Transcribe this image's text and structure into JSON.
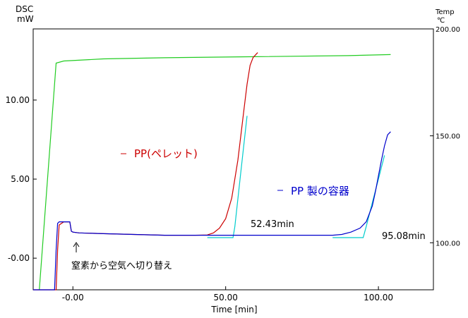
{
  "chart_data": {
    "type": "line",
    "xlabel": "Time [min]",
    "ylabel": "DSC",
    "ylabel_unit": "mW",
    "y2label": "Temp",
    "y2label_unit": "℃",
    "xlim": [
      -13,
      118
    ],
    "ylim": [
      -2,
      14.5
    ],
    "y2lim": [
      78,
      200
    ],
    "x_ticks": [
      {
        "value": 0,
        "label": "-0.00"
      },
      {
        "value": 50,
        "label": "50.00"
      },
      {
        "value": 100,
        "label": "100.00"
      }
    ],
    "y_ticks": [
      {
        "value": 10,
        "label": "10.00"
      },
      {
        "value": 5,
        "label": "5.00"
      },
      {
        "value": 0,
        "label": "-0.00"
      }
    ],
    "y2_ticks": [
      {
        "value": 200,
        "label": "200.00"
      },
      {
        "value": 150,
        "label": "150.00"
      },
      {
        "value": 100,
        "label": "100.00"
      }
    ],
    "series": [
      {
        "name": "PP(ペレット)",
        "color": "#cc0000",
        "axis": "left",
        "x": [
          -13,
          -11,
          -10.5,
          -5.5,
          -5,
          -4.5,
          -3,
          -1,
          -0.5,
          0,
          2,
          10,
          20,
          30,
          40,
          44,
          46,
          48,
          50,
          52,
          54,
          56,
          57,
          58,
          59,
          60.5
        ],
        "y": [
          -2,
          -2,
          -2,
          -2,
          0.5,
          2.1,
          2.3,
          2.3,
          1.7,
          1.65,
          1.6,
          1.55,
          1.5,
          1.45,
          1.45,
          1.47,
          1.6,
          1.9,
          2.5,
          3.8,
          6.2,
          9.4,
          11.0,
          12.2,
          12.7,
          13.0
        ]
      },
      {
        "name": "PP 製の容器",
        "color": "#0000cc",
        "axis": "left",
        "x": [
          -13,
          -6,
          -5.5,
          -5,
          -4.5,
          -3,
          -1,
          -0.5,
          0,
          2,
          10,
          30,
          50,
          70,
          85,
          88,
          91,
          94,
          96,
          98,
          99,
          100,
          101,
          102,
          103,
          104
        ],
        "y": [
          -2,
          -2,
          0.5,
          2.2,
          2.3,
          2.3,
          2.3,
          1.7,
          1.65,
          1.6,
          1.55,
          1.45,
          1.45,
          1.45,
          1.45,
          1.5,
          1.65,
          1.9,
          2.3,
          3.3,
          4.2,
          5.2,
          6.2,
          7.1,
          7.8,
          8.0
        ]
      },
      {
        "name": "Temp (ペレット)",
        "color": "#00cccc",
        "axis": "left",
        "x": [
          44,
          52.4,
          53,
          55,
          57
        ],
        "y": [
          1.3,
          1.3,
          2.0,
          5.5,
          9.0
        ]
      },
      {
        "name": "Temp (容器)",
        "color": "#00cccc",
        "axis": "left",
        "x": [
          85,
          95,
          96,
          98,
          100,
          102
        ],
        "y": [
          1.3,
          1.3,
          2.0,
          3.5,
          5.0,
          6.5
        ]
      },
      {
        "name": "Temp",
        "color": "#22cc22",
        "axis": "right",
        "x": [
          -11,
          -5.5,
          -3,
          10,
          30,
          60,
          90,
          104
        ],
        "y": [
          78,
          184,
          185,
          186,
          186.5,
          187,
          187.5,
          188
        ]
      }
    ],
    "annotations": [
      {
        "text": "52.43min",
        "x": 52.43
      },
      {
        "text": "95.08min",
        "x": 95.08
      },
      {
        "text": "窒素から空気へ切り替え",
        "x": 0
      }
    ],
    "legend": [
      {
        "text": "PP(ペレット)",
        "color": "#cc0000"
      },
      {
        "text": "PP 製の容器",
        "color": "#0000cc"
      }
    ],
    "grid": false
  }
}
